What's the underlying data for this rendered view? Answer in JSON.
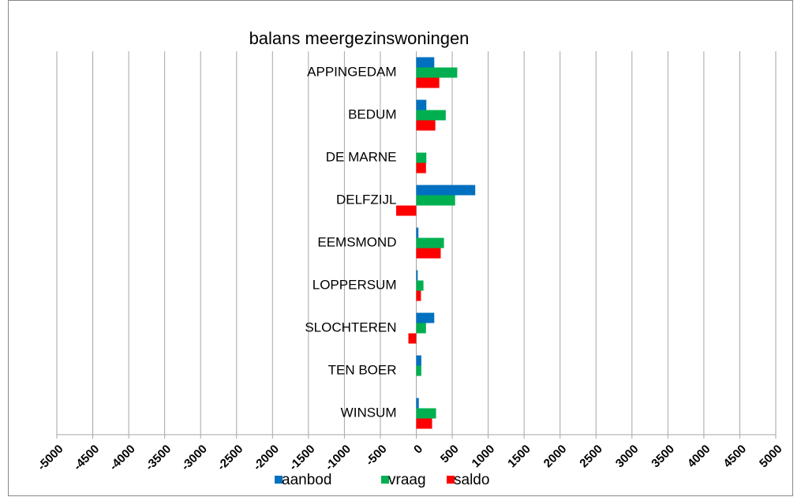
{
  "chart_data": {
    "type": "hbar",
    "title": "balans meergezinswoningen",
    "categories": [
      "APPINGEDAM",
      "BEDUM",
      "DE MARNE",
      "DELFZIJL",
      "EEMSMOND",
      "LOPPERSUM",
      "SLOCHTEREN",
      "TEN BOER",
      "WINSUM"
    ],
    "series": [
      {
        "name": "aanbod",
        "color": "#0070c0",
        "values": [
          250,
          140,
          0,
          820,
          30,
          20,
          250,
          70,
          35
        ]
      },
      {
        "name": "vraag",
        "color": "#00b050",
        "values": [
          570,
          410,
          140,
          540,
          385,
          100,
          135,
          70,
          275
        ]
      },
      {
        "name": "saldo",
        "color": "#ff0000",
        "values": [
          320,
          265,
          135,
          -280,
          340,
          65,
          -110,
          0,
          220
        ]
      }
    ],
    "xlim": [
      -5000,
      5000
    ],
    "xticks": [
      -5000,
      -4500,
      -4000,
      -3500,
      -3000,
      -2500,
      -2000,
      -1500,
      -1000,
      -500,
      0,
      500,
      1000,
      1500,
      2000,
      2500,
      3000,
      3500,
      4000,
      4500,
      5000
    ],
    "grid": true,
    "legend": "bottom"
  }
}
